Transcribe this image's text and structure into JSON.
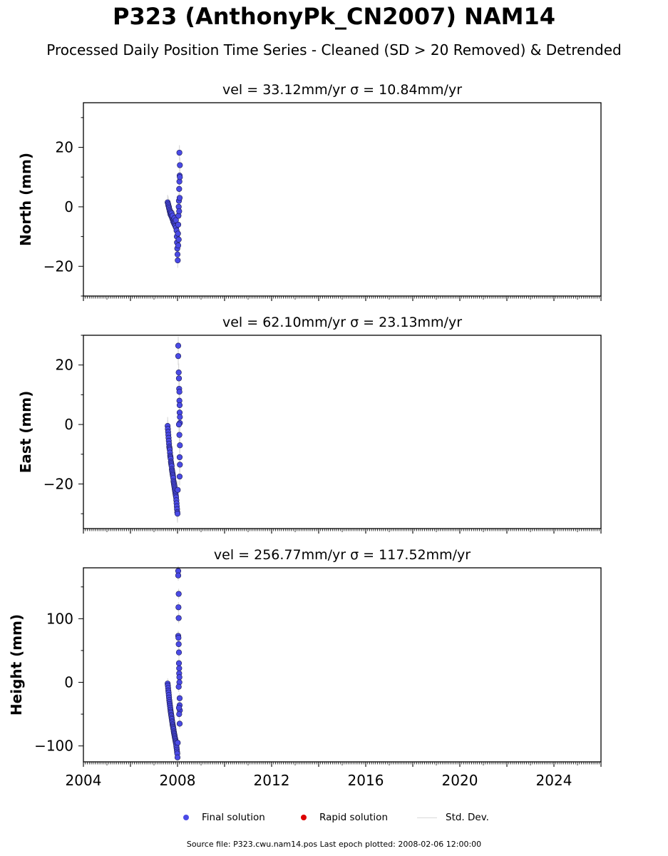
{
  "header": {
    "title": "P323 (AnthonyPk_CN2007) NAM14",
    "subtitle": "Processed Daily Position Time Series - Cleaned (SD > 20 Removed) & Detrended"
  },
  "footer": {
    "text": "Source file: P323.cwu.nam14.pos  Last epoch plotted: 2008-02-06 12:00:00"
  },
  "legend": {
    "final": "Final solution",
    "rapid": "Rapid solution",
    "stddev": "Std. Dev."
  },
  "colors": {
    "final": "#4a4ae6",
    "rapid": "#dd0000",
    "stddev": "#d9d9d9"
  },
  "chart_data": [
    {
      "type": "scatter",
      "title": "vel = 33.12mm/yr   σ = 10.84mm/yr",
      "ylabel": "North (mm)",
      "xlim": [
        2004,
        2026
      ],
      "ylim": [
        -30,
        35
      ],
      "yticks": [
        -20,
        0,
        20
      ],
      "xticks": [
        "2004",
        "2008",
        "2012",
        "2016",
        "2020",
        "2024"
      ],
      "series": [
        {
          "x": [
            2007.58,
            2007.6,
            2007.61,
            2007.63,
            2007.64,
            2007.66,
            2007.67,
            2007.69,
            2007.7,
            2007.72,
            2007.73,
            2007.75,
            2007.76,
            2007.78,
            2007.79,
            2007.81,
            2007.82,
            2007.84,
            2007.85,
            2007.87,
            2007.88,
            2007.9,
            2007.91,
            2007.93,
            2007.94,
            2007.96,
            2007.97,
            2007.98,
            2007.99,
            2008.0,
            2008.01,
            2008.02,
            2008.03,
            2008.04,
            2008.05,
            2008.06,
            2008.07,
            2008.08,
            2008.09,
            2008.1
          ],
          "y": [
            1.5,
            1.0,
            0.5,
            0.0,
            -0.5,
            -1.0,
            -1.5,
            -2.0,
            -2.5,
            -1.8,
            -3.0,
            -2.2,
            -3.5,
            -4.0,
            -3.0,
            -4.5,
            -5.0,
            -4.2,
            -5.5,
            -3.8,
            -6.0,
            -5.0,
            -6.5,
            -4.5,
            -7.0,
            -8.0,
            -10.0,
            -12.0,
            -14.0,
            -16.0,
            -18.0,
            -9.0,
            -6.0,
            -3.0,
            0.0,
            2.0,
            6.0,
            8.5,
            10.5,
            14.0
          ],
          "sigma": [
            2.5,
            2.5,
            2.5,
            2.5,
            2.5,
            2.5,
            2.5,
            2.5,
            2.5,
            2.5,
            2.5,
            2.5,
            2.5,
            2.5,
            2.5,
            2.5,
            2.5,
            2.5,
            2.5,
            2.5,
            2.5,
            2.5,
            2.5,
            2.5,
            2.5,
            2.5,
            2.5,
            2.5,
            2.5,
            2.5,
            2.5,
            2.5,
            2.5,
            2.5,
            2.5,
            2.5,
            2.5,
            2.5,
            2.5,
            2.5
          ]
        }
      ],
      "extra_points": [
        {
          "x": 2008.08,
          "y": 18.2
        },
        {
          "x": 2008.1,
          "y": 10.0
        },
        {
          "x": 2008.09,
          "y": 3.0
        },
        {
          "x": 2008.07,
          "y": -1.5
        },
        {
          "x": 2008.03,
          "y": -13.0
        },
        {
          "x": 2008.05,
          "y": -11.0
        }
      ]
    },
    {
      "type": "scatter",
      "title": "vel = 62.10mm/yr   σ = 23.13mm/yr",
      "ylabel": "East (mm)",
      "xlim": [
        2004,
        2026
      ],
      "ylim": [
        -35,
        30
      ],
      "yticks": [
        -20,
        0,
        20
      ],
      "xticks": [
        "2004",
        "2008",
        "2012",
        "2016",
        "2020",
        "2024"
      ],
      "series": [
        {
          "x": [
            2007.58,
            2007.59,
            2007.6,
            2007.61,
            2007.62,
            2007.63,
            2007.64,
            2007.65,
            2007.66,
            2007.67,
            2007.68,
            2007.69,
            2007.7,
            2007.71,
            2007.72,
            2007.73,
            2007.74,
            2007.75,
            2007.76,
            2007.77,
            2007.78,
            2007.79,
            2007.8,
            2007.81,
            2007.82,
            2007.83,
            2007.84,
            2007.85,
            2007.86,
            2007.87,
            2007.88,
            2007.89,
            2007.9,
            2007.91,
            2007.92,
            2007.93,
            2007.94,
            2007.95,
            2007.96,
            2007.97,
            2007.98,
            2007.99,
            2008.0,
            2008.01
          ],
          "y": [
            -0.5,
            -1.5,
            -2.5,
            -3.5,
            -4.5,
            -5.5,
            -6.5,
            -7.5,
            -8.0,
            -8.5,
            -9.5,
            -10.5,
            -11.0,
            -11.5,
            -12.5,
            -13.0,
            -13.5,
            -14.0,
            -15.0,
            -15.5,
            -16.0,
            -16.5,
            -17.0,
            -17.5,
            -18.0,
            -19.0,
            -19.5,
            -20.0,
            -20.5,
            -21.0,
            -21.5,
            -22.0,
            -22.5,
            -23.0,
            -23.5,
            -24.0,
            -24.5,
            -25.5,
            -26.5,
            -27.5,
            -28.5,
            -29.5,
            -30.0,
            -22.0
          ],
          "sigma": [
            3,
            3,
            3,
            3,
            3,
            3,
            3,
            3,
            3,
            3,
            3,
            3,
            3,
            3,
            3,
            3,
            3,
            3,
            3,
            3,
            3,
            3,
            3,
            3,
            3,
            3,
            3,
            3,
            3,
            3,
            3,
            3,
            3,
            3,
            3,
            3,
            3,
            3,
            3,
            3,
            3,
            3,
            3,
            3
          ]
        }
      ],
      "extra_points": [
        {
          "x": 2008.03,
          "y": 26.5
        },
        {
          "x": 2008.03,
          "y": 23.0
        },
        {
          "x": 2008.05,
          "y": 17.5
        },
        {
          "x": 2008.06,
          "y": 15.5
        },
        {
          "x": 2008.07,
          "y": 12.0
        },
        {
          "x": 2008.08,
          "y": 11.0
        },
        {
          "x": 2008.08,
          "y": 8.0
        },
        {
          "x": 2008.09,
          "y": 6.5
        },
        {
          "x": 2008.09,
          "y": 4.0
        },
        {
          "x": 2008.1,
          "y": 2.5
        },
        {
          "x": 2008.1,
          "y": 0.5
        },
        {
          "x": 2008.08,
          "y": -3.5
        },
        {
          "x": 2008.1,
          "y": -7.0
        },
        {
          "x": 2008.09,
          "y": -11.0
        },
        {
          "x": 2008.1,
          "y": -13.5
        },
        {
          "x": 2008.09,
          "y": -17.5
        },
        {
          "x": 2008.06,
          "y": 0.0
        }
      ]
    },
    {
      "type": "scatter",
      "title": "vel = 256.77mm/yr   σ = 117.52mm/yr",
      "ylabel": "Height (mm)",
      "xlim": [
        2004,
        2026
      ],
      "ylim": [
        -125,
        180
      ],
      "yticks": [
        -100,
        0,
        100
      ],
      "xticks": [
        "2004",
        "2008",
        "2012",
        "2016",
        "2020",
        "2024"
      ],
      "series": [
        {
          "x": [
            2007.58,
            2007.59,
            2007.6,
            2007.61,
            2007.62,
            2007.63,
            2007.64,
            2007.65,
            2007.66,
            2007.67,
            2007.68,
            2007.69,
            2007.7,
            2007.71,
            2007.72,
            2007.73,
            2007.74,
            2007.75,
            2007.76,
            2007.77,
            2007.78,
            2007.79,
            2007.8,
            2007.81,
            2007.82,
            2007.83,
            2007.84,
            2007.85,
            2007.86,
            2007.87,
            2007.88,
            2007.89,
            2007.9,
            2007.91,
            2007.92,
            2007.93,
            2007.94,
            2007.95,
            2007.96,
            2007.97,
            2007.98,
            2007.99,
            2008.0,
            2008.01
          ],
          "y": [
            -2,
            -5,
            -9,
            -13,
            -16,
            -20,
            -24,
            -28,
            -31,
            -34,
            -37,
            -40,
            -43,
            -46,
            -48,
            -51,
            -53,
            -56,
            -58,
            -61,
            -63,
            -66,
            -68,
            -70,
            -72,
            -74,
            -77,
            -79,
            -81,
            -83,
            -85,
            -87,
            -89,
            -91,
            -93,
            -95,
            -97,
            -100,
            -103,
            -106,
            -109,
            -112,
            -118,
            -95
          ],
          "sigma": [
            8,
            8,
            8,
            8,
            8,
            8,
            8,
            8,
            8,
            8,
            8,
            8,
            8,
            8,
            8,
            8,
            8,
            8,
            8,
            8,
            8,
            8,
            8,
            8,
            8,
            8,
            8,
            8,
            8,
            8,
            8,
            8,
            8,
            8,
            8,
            8,
            8,
            8,
            8,
            8,
            8,
            8,
            8,
            8
          ]
        }
      ],
      "extra_points": [
        {
          "x": 2008.03,
          "y": 175
        },
        {
          "x": 2008.03,
          "y": 168
        },
        {
          "x": 2008.05,
          "y": 139
        },
        {
          "x": 2008.04,
          "y": 118
        },
        {
          "x": 2008.05,
          "y": 101
        },
        {
          "x": 2008.03,
          "y": 73
        },
        {
          "x": 2008.04,
          "y": 70
        },
        {
          "x": 2008.05,
          "y": 60
        },
        {
          "x": 2008.06,
          "y": 47
        },
        {
          "x": 2008.06,
          "y": 30
        },
        {
          "x": 2008.07,
          "y": 22
        },
        {
          "x": 2008.07,
          "y": 14
        },
        {
          "x": 2008.08,
          "y": 8
        },
        {
          "x": 2008.08,
          "y": 0
        },
        {
          "x": 2008.05,
          "y": -7
        },
        {
          "x": 2008.09,
          "y": -25
        },
        {
          "x": 2008.09,
          "y": -36
        },
        {
          "x": 2008.1,
          "y": -44
        },
        {
          "x": 2008.07,
          "y": -50
        },
        {
          "x": 2008.09,
          "y": -65
        },
        {
          "x": 2008.06,
          "y": -40
        }
      ]
    }
  ]
}
